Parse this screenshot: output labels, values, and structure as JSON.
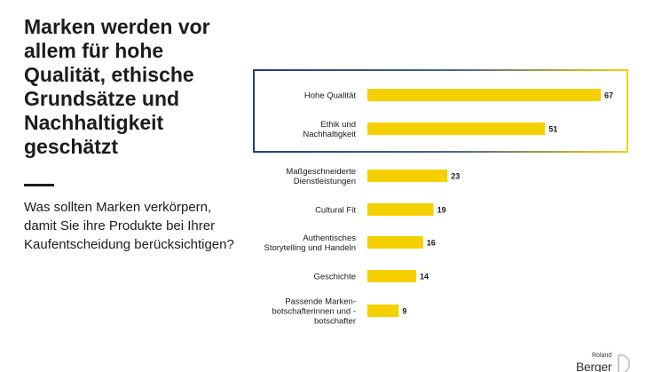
{
  "headline": "Marken werden vor allem für hohe Qualität, ethische Grundsätze und Nachhaltigkeit geschätzt",
  "subheadline": "Was sollten Marken verkörpern, damit Sie ihre Produkte bei Ihrer Kaufentscheidung berücksichtigen?",
  "logo": {
    "line1": "Roland",
    "line2": "Berger"
  },
  "colors": {
    "bar": "#f5d000",
    "text": "#1a1a1a",
    "box_start": "#1f3d7a",
    "box_end": "#f5d000"
  },
  "chart_data": {
    "type": "bar",
    "orientation": "horizontal",
    "categories": [
      "Hohe Qualität",
      "Ethik und Nachhaltigkeit",
      "Maßgeschneiderte Dienstleistungen",
      "Cultural Fit",
      "Authentisches Storytelling und Handeln",
      "Geschichte",
      "Passende Marken-botschafterinnen und -botschafter"
    ],
    "category_lines": [
      [
        "Hohe Qualität"
      ],
      [
        "Ethik und",
        "Nachhaltigkeit"
      ],
      [
        "Maßgeschneiderte",
        "Dienstleistungen"
      ],
      [
        "Cultural Fit"
      ],
      [
        "Authentisches",
        "Storytelling und Handeln"
      ],
      [
        "Geschichte"
      ],
      [
        "Passende Marken-",
        "botschafterinnen und -",
        "botschafter"
      ]
    ],
    "values": [
      67,
      51,
      23,
      19,
      16,
      14,
      9
    ],
    "highlighted_categories": [
      "Hohe Qualität",
      "Ethik und Nachhaltigkeit"
    ],
    "xlim": [
      0,
      67
    ],
    "grid": false,
    "legend": "none"
  }
}
